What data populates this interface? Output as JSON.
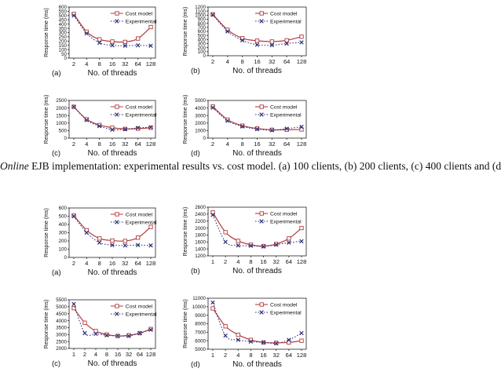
{
  "caption": {
    "italic": "Online",
    "text": " EJB implementation: experimental results vs. cost model. (a) 100 clients, (b) 200 clients, (c) 400 clients and (d"
  },
  "legend": {
    "cost": "Cost model",
    "exp": "Experimental"
  },
  "colors": {
    "cost": "#b23b3b",
    "exp": "#2b2f7a",
    "axis": "#222222"
  },
  "chart_data": [
    {
      "type": "line",
      "panel": "(a)",
      "xlabel": "No. of threads",
      "ylabel": "Response time (ms)",
      "categories": [
        "2",
        "4",
        "8",
        "16",
        "32",
        "64",
        "128"
      ],
      "ylim": [
        0,
        600
      ],
      "yticks": [
        0,
        50,
        100,
        150,
        200,
        250,
        300,
        350,
        400,
        450,
        500,
        550,
        600
      ],
      "series": [
        {
          "name": "Cost model",
          "values": [
            520,
            310,
            220,
            195,
            190,
            230,
            365
          ]
        },
        {
          "name": "Experimental",
          "values": [
            500,
            290,
            180,
            150,
            145,
            150,
            145
          ]
        }
      ]
    },
    {
      "type": "line",
      "panel": "(b)",
      "xlabel": "No. of threads",
      "ylabel": "Response time (ms)",
      "categories": [
        "2",
        "4",
        "8",
        "16",
        "32",
        "64",
        "128"
      ],
      "ylim": [
        0,
        1200
      ],
      "yticks": [
        0,
        100,
        200,
        300,
        400,
        500,
        600,
        700,
        800,
        900,
        1000,
        1100,
        1200
      ],
      "series": [
        {
          "name": "Cost model",
          "values": [
            1020,
            640,
            430,
            370,
            350,
            380,
            470
          ]
        },
        {
          "name": "Experimental",
          "values": [
            1010,
            600,
            380,
            270,
            260,
            300,
            330
          ]
        }
      ]
    },
    {
      "type": "line",
      "panel": "(c)",
      "xlabel": "No. of threads",
      "ylabel": "Response time (ms)",
      "categories": [
        "2",
        "4",
        "8",
        "16",
        "32",
        "64",
        "128"
      ],
      "ylim": [
        0,
        2500
      ],
      "yticks": [
        0,
        500,
        1000,
        1500,
        2000,
        2500
      ],
      "series": [
        {
          "name": "Cost model",
          "values": [
            2080,
            1250,
            870,
            690,
            610,
            630,
            690
          ]
        },
        {
          "name": "Experimental",
          "values": [
            2080,
            1200,
            800,
            560,
            590,
            680,
            720
          ]
        }
      ]
    },
    {
      "type": "line",
      "panel": "(d)",
      "xlabel": "No. of threads",
      "ylabel": "Response time (ms)",
      "categories": [
        "2",
        "4",
        "8",
        "16",
        "32",
        "64",
        "128"
      ],
      "ylim": [
        0,
        5000
      ],
      "yticks": [
        0,
        1000,
        2000,
        3000,
        4000,
        5000
      ],
      "series": [
        {
          "name": "Cost model",
          "values": [
            4200,
            2450,
            1650,
            1280,
            1110,
            1110,
            1150
          ]
        },
        {
          "name": "Experimental",
          "values": [
            4050,
            2300,
            1550,
            1200,
            1050,
            1250,
            1500
          ]
        }
      ]
    },
    {
      "type": "line",
      "panel": "(a)",
      "xlabel": "No. of threads",
      "ylabel": "Response time (ms)",
      "categories": [
        "2",
        "4",
        "8",
        "16",
        "32",
        "64",
        "128"
      ],
      "ylim": [
        0,
        600
      ],
      "yticks": [
        0,
        100,
        200,
        300,
        400,
        500,
        600
      ],
      "series": [
        {
          "name": "Cost model",
          "values": [
            510,
            330,
            230,
            205,
            200,
            240,
            370
          ]
        },
        {
          "name": "Experimental",
          "values": [
            500,
            300,
            180,
            150,
            145,
            150,
            145
          ]
        }
      ]
    },
    {
      "type": "line",
      "panel": "(b)",
      "xlabel": "No. of threads",
      "ylabel": "Response time (ms)",
      "categories": [
        "1",
        "2",
        "4",
        "8",
        "16",
        "32",
        "64",
        "128"
      ],
      "ylim": [
        1200,
        2600
      ],
      "yticks": [
        1200,
        1400,
        1600,
        1800,
        2000,
        2200,
        2400,
        2600
      ],
      "series": [
        {
          "name": "Cost model",
          "values": [
            2450,
            1880,
            1630,
            1520,
            1480,
            1540,
            1700,
            2000
          ]
        },
        {
          "name": "Experimental",
          "values": [
            2380,
            1600,
            1500,
            1490,
            1470,
            1520,
            1580,
            1620
          ]
        }
      ]
    },
    {
      "type": "line",
      "panel": "(c)",
      "xlabel": "No. of threads",
      "ylabel": "Response time (ms)",
      "categories": [
        "1",
        "2",
        "4",
        "8",
        "16",
        "32",
        "64",
        "128"
      ],
      "ylim": [
        2000,
        5500
      ],
      "yticks": [
        2000,
        2500,
        3000,
        3500,
        4000,
        4500,
        5000,
        5500
      ],
      "series": [
        {
          "name": "Cost model",
          "values": [
            4900,
            3850,
            3250,
            3000,
            2900,
            2950,
            3100,
            3400
          ]
        },
        {
          "name": "Experimental",
          "values": [
            5200,
            3100,
            3050,
            2950,
            2900,
            2900,
            3100,
            3350
          ]
        }
      ]
    },
    {
      "type": "line",
      "panel": "(d)",
      "xlabel": "No. of threads",
      "ylabel": "Response time (ms)",
      "categories": [
        "1",
        "2",
        "4",
        "8",
        "16",
        "32",
        "64",
        "128"
      ],
      "ylim": [
        5000,
        11000
      ],
      "yticks": [
        5000,
        6000,
        7000,
        8000,
        9000,
        10000,
        11000
      ],
      "series": [
        {
          "name": "Cost model",
          "values": [
            9800,
            7700,
            6700,
            6100,
            5800,
            5750,
            5800,
            6000
          ]
        },
        {
          "name": "Experimental",
          "values": [
            10500,
            6600,
            6100,
            5900,
            5800,
            5700,
            6100,
            6900
          ]
        }
      ]
    }
  ]
}
